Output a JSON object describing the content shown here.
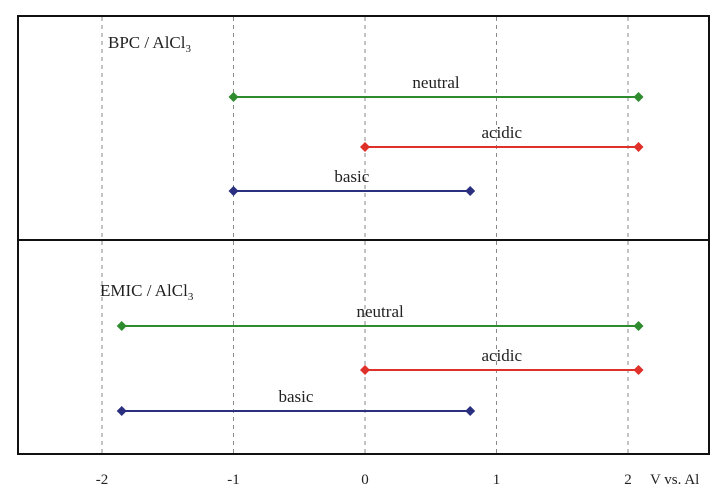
{
  "chart_data": [
    {
      "type": "range",
      "title": "BPC / AlCl3",
      "title_main": "BPC / AlCl",
      "title_sub": "3",
      "xlim": [
        -2,
        2.3
      ],
      "x_ticks": [
        -2,
        -1,
        0,
        1,
        2
      ],
      "grid": true,
      "series": [
        {
          "name": "neutral",
          "start": -1.0,
          "end": 2.08,
          "color": "#2e8b2e"
        },
        {
          "name": "acidic",
          "start": 0.0,
          "end": 2.08,
          "color": "#e0302a"
        },
        {
          "name": "basic",
          "start": -1.0,
          "end": 0.8,
          "color": "#2b2f80"
        }
      ]
    },
    {
      "type": "range",
      "title": "EMIC / AlCl3",
      "title_main": "EMIC / AlCl",
      "title_sub": "3",
      "xlim": [
        -2,
        2.3
      ],
      "x_ticks": [
        -2,
        -1,
        0,
        1,
        2
      ],
      "grid": true,
      "series": [
        {
          "name": "neutral",
          "start": -1.85,
          "end": 2.08,
          "color": "#2e8b2e"
        },
        {
          "name": "acidic",
          "start": 0.0,
          "end": 2.08,
          "color": "#e0302a"
        },
        {
          "name": "basic",
          "start": -1.85,
          "end": 0.8,
          "color": "#2b2f80"
        }
      ]
    }
  ],
  "axis": {
    "tick_labels": [
      "-2",
      "-1",
      "0",
      "1",
      "2"
    ],
    "unit_label": "V vs. Al"
  }
}
